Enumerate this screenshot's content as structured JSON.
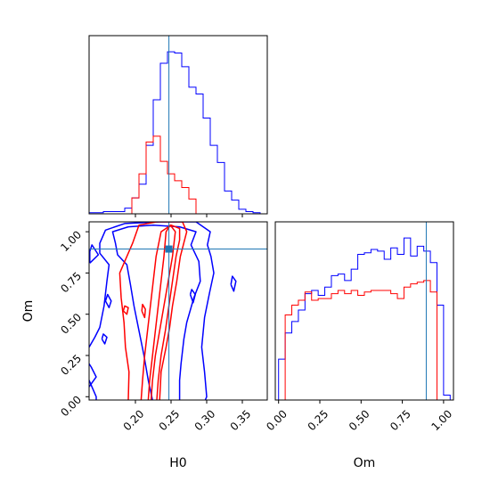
{
  "chart_data": {
    "type": "corner",
    "parameters": [
      "H0",
      "Om"
    ],
    "truths": {
      "H0": 0.247,
      "Om": 0.895
    },
    "colors": {
      "blue_series": "#0000ff",
      "red_series": "#ff0000",
      "truth": "#1f77b4"
    },
    "panels": {
      "h0_hist": {
        "type": "histogram-step",
        "xlim": [
          0.135,
          0.385
        ],
        "bins": [
          0.135,
          0.145,
          0.155,
          0.165,
          0.175,
          0.185,
          0.195,
          0.205,
          0.215,
          0.225,
          0.235,
          0.245,
          0.255,
          0.265,
          0.275,
          0.285,
          0.295,
          0.305,
          0.315,
          0.325,
          0.335,
          0.345,
          0.355,
          0.365,
          0.375,
          0.385
        ],
        "series": [
          {
            "color": "blue",
            "values": [
              1,
              1,
              2,
              2,
              2,
              5,
              14,
              26,
              60,
              100,
              132,
              142,
              141,
              129,
              111,
              105,
              84,
              60,
              45,
              20,
              12,
              4,
              2,
              1,
              0
            ]
          },
          {
            "color": "red",
            "values": [
              0,
              0,
              0,
              0,
              0,
              0,
              14,
              35,
              63,
              68,
              46,
              35,
              29,
              23,
              13,
              0,
              0,
              0,
              0,
              0,
              0,
              0,
              0,
              0,
              0
            ]
          }
        ]
      },
      "joint": {
        "type": "contour",
        "xlim": [
          0.135,
          0.385
        ],
        "ylim": [
          -0.02,
          1.06
        ],
        "xticks": [
          "0.20",
          "0.25",
          "0.30",
          "0.35"
        ],
        "yticks": [
          "0.00",
          "0.25",
          "0.50",
          "0.75",
          "1.00"
        ],
        "xlabel": "H0",
        "ylabel": "Om",
        "series": [
          {
            "color": "blue",
            "contours": [
              [
                [
                  0.224,
                  -0.02
                ],
                [
                  0.218,
                  0.1
                ],
                [
                  0.212,
                  0.25
                ],
                [
                  0.205,
                  0.4
                ],
                [
                  0.198,
                  0.55
                ],
                [
                  0.193,
                  0.68
                ],
                [
                  0.188,
                  0.8
                ],
                [
                  0.175,
                  0.86
                ],
                [
                  0.172,
                  0.93
                ],
                [
                  0.168,
                  1.0
                ],
                [
                  0.19,
                  1.03
                ],
                [
                  0.225,
                  1.04
                ],
                [
                  0.262,
                  1.03
                ],
                [
                  0.285,
                  1.0
                ],
                [
                  0.278,
                  0.92
                ],
                [
                  0.289,
                  0.82
                ],
                [
                  0.291,
                  0.7
                ],
                [
                  0.282,
                  0.6
                ],
                [
                  0.272,
                  0.45
                ],
                [
                  0.268,
                  0.35
                ],
                [
                  0.264,
                  0.2
                ],
                [
                  0.262,
                  0.1
                ],
                [
                  0.262,
                  -0.02
                ]
              ],
              [
                [
                  0.135,
                  0.3
                ],
                [
                  0.143,
                  0.36
                ],
                [
                  0.15,
                  0.42
                ],
                [
                  0.156,
                  0.55
                ],
                [
                  0.16,
                  0.7
                ],
                [
                  0.163,
                  0.8
                ],
                [
                  0.15,
                  0.87
                ],
                [
                  0.15,
                  0.93
                ],
                [
                  0.158,
                  1.01
                ],
                [
                  0.185,
                  1.05
                ],
                [
                  0.235,
                  1.06
                ],
                [
                  0.285,
                  1.06
                ],
                [
                  0.305,
                  1.0
                ],
                [
                  0.301,
                  0.92
                ],
                [
                  0.306,
                  0.85
                ],
                [
                  0.31,
                  0.75
                ],
                [
                  0.304,
                  0.63
                ],
                [
                  0.297,
                  0.48
                ],
                [
                  0.293,
                  0.3
                ],
                [
                  0.297,
                  0.15
                ],
                [
                  0.3,
                  0.0
                ],
                [
                  0.298,
                  -0.02
                ]
              ],
              [
                [
                  0.135,
                  0.06
                ],
                [
                  0.145,
                  0.12
                ],
                [
                  0.138,
                  0.18
                ],
                [
                  0.135,
                  0.2
                ]
              ],
              [
                [
                  0.135,
                  0.1
                ],
                [
                  0.145,
                  0.0
                ],
                [
                  0.145,
                  -0.02
                ]
              ],
              [
                [
                  0.158,
                  0.58
                ],
                [
                  0.163,
                  0.54
                ],
                [
                  0.166,
                  0.58
                ],
                [
                  0.161,
                  0.62
                ],
                [
                  0.158,
                  0.58
                ]
              ],
              [
                [
                  0.136,
                  0.81
                ],
                [
                  0.148,
                  0.86
                ],
                [
                  0.139,
                  0.92
                ],
                [
                  0.136,
                  0.88
                ],
                [
                  0.136,
                  0.81
                ]
              ],
              [
                [
                  0.153,
                  0.35
                ],
                [
                  0.157,
                  0.32
                ],
                [
                  0.16,
                  0.36
                ],
                [
                  0.155,
                  0.38
                ],
                [
                  0.153,
                  0.35
                ]
              ],
              [
                [
                  0.334,
                  0.68
                ],
                [
                  0.338,
                  0.64
                ],
                [
                  0.341,
                  0.7
                ],
                [
                  0.336,
                  0.73
                ],
                [
                  0.334,
                  0.68
                ]
              ],
              [
                [
                  0.277,
                  0.62
                ],
                [
                  0.281,
                  0.57
                ],
                [
                  0.284,
                  0.62
                ],
                [
                  0.279,
                  0.65
                ],
                [
                  0.277,
                  0.62
                ]
              ]
            ]
          },
          {
            "color": "red",
            "contours": [
              [
                [
                  0.218,
                  -0.02
                ],
                [
                  0.22,
                  0.1
                ],
                [
                  0.224,
                  0.25
                ],
                [
                  0.228,
                  0.4
                ],
                [
                  0.232,
                  0.55
                ],
                [
                  0.236,
                  0.7
                ],
                [
                  0.24,
                  0.85
                ],
                [
                  0.243,
                  1.0
                ],
                [
                  0.249,
                  1.04
                ],
                [
                  0.256,
                  1.0
                ],
                [
                  0.252,
                  0.85
                ],
                [
                  0.246,
                  0.7
                ],
                [
                  0.24,
                  0.55
                ],
                [
                  0.234,
                  0.4
                ],
                [
                  0.228,
                  0.25
                ],
                [
                  0.224,
                  0.1
                ],
                [
                  0.222,
                  -0.02
                ]
              ],
              [
                [
                  0.208,
                  -0.02
                ],
                [
                  0.21,
                  0.1
                ],
                [
                  0.213,
                  0.25
                ],
                [
                  0.217,
                  0.4
                ],
                [
                  0.221,
                  0.55
                ],
                [
                  0.225,
                  0.7
                ],
                [
                  0.229,
                  0.85
                ],
                [
                  0.236,
                  1.0
                ],
                [
                  0.25,
                  1.04
                ],
                [
                  0.262,
                  1.02
                ],
                [
                  0.262,
                  0.95
                ],
                [
                  0.257,
                  0.85
                ],
                [
                  0.252,
                  0.7
                ],
                [
                  0.247,
                  0.55
                ],
                [
                  0.242,
                  0.4
                ],
                [
                  0.236,
                  0.25
                ],
                [
                  0.232,
                  0.1
                ],
                [
                  0.23,
                  -0.02
                ]
              ],
              [
                [
                  0.19,
                  -0.02
                ],
                [
                  0.191,
                  0.15
                ],
                [
                  0.186,
                  0.3
                ],
                [
                  0.184,
                  0.45
                ],
                [
                  0.18,
                  0.6
                ],
                [
                  0.178,
                  0.75
                ],
                [
                  0.186,
                  0.83
                ],
                [
                  0.196,
                  0.93
                ],
                [
                  0.205,
                  1.04
                ],
                [
                  0.23,
                  1.06
                ],
                [
                  0.266,
                  1.06
                ],
                [
                  0.272,
                  1.0
                ],
                [
                  0.263,
                  0.85
                ],
                [
                  0.258,
                  0.7
                ],
                [
                  0.252,
                  0.55
                ],
                [
                  0.248,
                  0.42
                ],
                [
                  0.243,
                  0.3
                ],
                [
                  0.236,
                  0.15
                ],
                [
                  0.234,
                  -0.02
                ]
              ],
              [
                [
                  0.209,
                  0.52
                ],
                [
                  0.213,
                  0.48
                ],
                [
                  0.214,
                  0.53
                ],
                [
                  0.21,
                  0.56
                ],
                [
                  0.209,
                  0.52
                ]
              ],
              [
                [
                  0.183,
                  0.52
                ],
                [
                  0.188,
                  0.5
                ],
                [
                  0.19,
                  0.54
                ],
                [
                  0.185,
                  0.55
                ],
                [
                  0.183,
                  0.52
                ]
              ]
            ]
          }
        ]
      },
      "om_hist": {
        "type": "histogram-step",
        "xlim": [
          -0.02,
          1.06
        ],
        "xticks": [
          "0.00",
          "0.25",
          "0.50",
          "0.75",
          "1.00"
        ],
        "xlabel": "Om",
        "bins": [
          0.0,
          0.04,
          0.08,
          0.12,
          0.16,
          0.2,
          0.24,
          0.28,
          0.32,
          0.36,
          0.4,
          0.44,
          0.48,
          0.52,
          0.56,
          0.6,
          0.64,
          0.68,
          0.72,
          0.76,
          0.8,
          0.84,
          0.88,
          0.92,
          0.96,
          1.0,
          1.04
        ],
        "series": [
          {
            "color": "blue",
            "values": [
              25,
              41,
              48,
              55,
              65,
              67,
              64,
              69,
              76,
              77,
              73,
              80,
              89,
              90,
              92,
              91,
              86,
              93,
              89,
              99,
              88,
              94,
              91,
              84,
              58,
              3
            ]
          },
          {
            "color": "red",
            "values": [
              0,
              52,
              58,
              61,
              66,
              61,
              62,
              62,
              65,
              67,
              65,
              67,
              64,
              66,
              67,
              67,
              67,
              65,
              62,
              69,
              71,
              72,
              73,
              66,
              0,
              0
            ]
          }
        ]
      }
    }
  }
}
